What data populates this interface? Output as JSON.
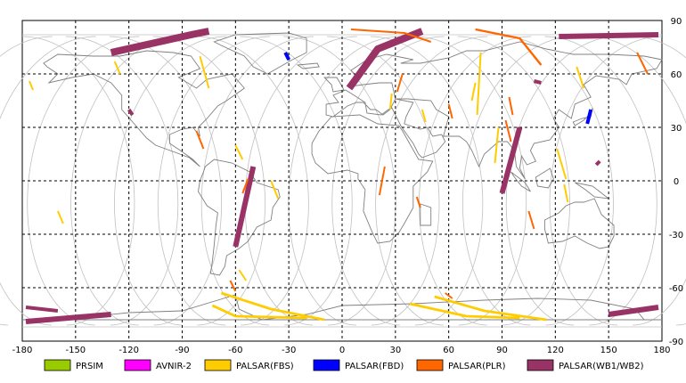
{
  "chart_data": {
    "type": "scatter",
    "title": "",
    "xlabel": "",
    "ylabel": "",
    "xlim": [
      -180,
      180
    ],
    "ylim": [
      -90,
      90
    ],
    "xticks": [
      -180,
      -150,
      -120,
      -90,
      -60,
      -30,
      0,
      30,
      60,
      90,
      120,
      150,
      180
    ],
    "yticks": [
      90,
      60,
      30,
      0,
      -30,
      -60,
      -90
    ],
    "grid": true,
    "legend_position": "bottom",
    "colors": {
      "PRSIM": "#99cc00",
      "AVNIR-2": "#ff00ff",
      "PALSAR(FBS)": "#ffcc00",
      "PALSAR(FBD)": "#0000ff",
      "PALSAR(PLR)": "#ff6600",
      "PALSAR(WB1/WB2)": "#993366",
      "coastline": "#808080",
      "orbit": "#c0c0c0"
    },
    "legend": [
      {
        "name": "PRSIM",
        "color": "#99cc00"
      },
      {
        "name": "AVNIR-2",
        "color": "#ff00ff"
      },
      {
        "name": "PALSAR(FBS)",
        "color": "#ffcc00"
      },
      {
        "name": "PALSAR(FBD)",
        "color": "#0000ff"
      },
      {
        "name": "PALSAR(PLR)",
        "color": "#ff6600"
      },
      {
        "name": "PALSAR(WB1/WB2)",
        "color": "#993366"
      }
    ],
    "series": [
      {
        "name": "PALSAR(WB1/WB2)",
        "segments": [
          {
            "lon": [
              -130,
              -85,
              -75
            ],
            "lat": [
              72,
              82,
              84
            ],
            "width": 4
          },
          {
            "lon": [
              4,
              20,
              45
            ],
            "lat": [
              52,
              74,
              84
            ],
            "width": 4
          },
          {
            "lon": [
              -50,
              -60
            ],
            "lat": [
              8,
              -37
            ],
            "width": 3
          },
          {
            "lon": [
              100,
              90
            ],
            "lat": [
              30,
              -7
            ],
            "width": 3
          },
          {
            "lon": [
              122,
              178
            ],
            "lat": [
              81,
              82
            ],
            "width": 3
          },
          {
            "lon": [
              -178,
              -130
            ],
            "lat": [
              -79,
              -75
            ],
            "width": 3
          },
          {
            "lon": [
              -178,
              -160
            ],
            "lat": [
              -71,
              -73
            ],
            "width": 2
          },
          {
            "lon": [
              150,
              178
            ],
            "lat": [
              -75,
              -71
            ],
            "width": 3
          },
          {
            "lon": [
              -120,
              -118
            ],
            "lat": [
              40,
              37
            ],
            "width": 2
          },
          {
            "lon": [
              108,
              112
            ],
            "lat": [
              56,
              55
            ],
            "width": 2
          },
          {
            "lon": [
              143,
              145
            ],
            "lat": [
              9,
              11
            ],
            "width": 2
          }
        ]
      },
      {
        "name": "PALSAR(FBS)",
        "segments": [
          {
            "lon": [
              -73,
              -60,
              -20
            ],
            "lat": [
              -70,
              -76,
              -77
            ],
            "width": 1.4
          },
          {
            "lon": [
              -68,
              -40,
              -10
            ],
            "lat": [
              -63,
              -72,
              -78
            ],
            "width": 1.4
          },
          {
            "lon": [
              38,
              70,
              100
            ],
            "lat": [
              -69,
              -76,
              -77
            ],
            "width": 1.4
          },
          {
            "lon": [
              52,
              80,
              115
            ],
            "lat": [
              -65,
              -73,
              -78
            ],
            "width": 1.4
          },
          {
            "lon": [
              -128,
              -125
            ],
            "lat": [
              67,
              60
            ],
            "width": 1
          },
          {
            "lon": [
              -80,
              -75
            ],
            "lat": [
              70,
              52
            ],
            "width": 1
          },
          {
            "lon": [
              -60,
              -56
            ],
            "lat": [
              20,
              12
            ],
            "width": 1
          },
          {
            "lon": [
              -40,
              -36
            ],
            "lat": [
              0,
              -10
            ],
            "width": 1
          },
          {
            "lon": [
              -160,
              -157
            ],
            "lat": [
              -17,
              -24
            ],
            "width": 1
          },
          {
            "lon": [
              -176,
              -174
            ],
            "lat": [
              56,
              51
            ],
            "width": 1
          },
          {
            "lon": [
              78,
              76
            ],
            "lat": [
              72,
              37
            ],
            "width": 1
          },
          {
            "lon": [
              75,
              73
            ],
            "lat": [
              55,
              45
            ],
            "width": 1
          },
          {
            "lon": [
              88,
              86
            ],
            "lat": [
              30,
              10
            ],
            "width": 1
          },
          {
            "lon": [
              132,
              136
            ],
            "lat": [
              64,
              52
            ],
            "width": 1
          },
          {
            "lon": [
              121,
              126
            ],
            "lat": [
              18,
              1
            ],
            "width": 1
          },
          {
            "lon": [
              125,
              127
            ],
            "lat": [
              -2,
              -12
            ],
            "width": 1
          },
          {
            "lon": [
              28,
              27
            ],
            "lat": [
              49,
              40
            ],
            "width": 1
          },
          {
            "lon": [
              45,
              47
            ],
            "lat": [
              40,
              33
            ],
            "width": 1
          },
          {
            "lon": [
              -58,
              -54
            ],
            "lat": [
              -50,
              -56
            ],
            "width": 1
          }
        ]
      },
      {
        "name": "PALSAR(PLR)",
        "segments": [
          {
            "lon": [
              5,
              35,
              50
            ],
            "lat": [
              85,
              83,
              78
            ],
            "width": 1
          },
          {
            "lon": [
              75,
              100,
              112
            ],
            "lat": [
              85,
              80,
              65
            ],
            "width": 1.2
          },
          {
            "lon": [
              166,
              172
            ],
            "lat": [
              72,
              60
            ],
            "width": 1
          },
          {
            "lon": [
              60,
              62
            ],
            "lat": [
              43,
              35
            ],
            "width": 1
          },
          {
            "lon": [
              94,
              96
            ],
            "lat": [
              47,
              37
            ],
            "width": 1
          },
          {
            "lon": [
              92,
              95
            ],
            "lat": [
              34,
              22
            ],
            "width": 1
          },
          {
            "lon": [
              34,
              31
            ],
            "lat": [
              60,
              50
            ],
            "width": 1
          },
          {
            "lon": [
              24,
              21
            ],
            "lat": [
              8,
              -8
            ],
            "width": 1
          },
          {
            "lon": [
              42,
              44
            ],
            "lat": [
              -9,
              -15
            ],
            "width": 1
          },
          {
            "lon": [
              -53,
              -56
            ],
            "lat": [
              1,
              -7
            ],
            "width": 1
          },
          {
            "lon": [
              -82,
              -78
            ],
            "lat": [
              28,
              18
            ],
            "width": 1
          },
          {
            "lon": [
              105,
              108
            ],
            "lat": [
              -17,
              -27
            ],
            "width": 1
          },
          {
            "lon": [
              -63,
              -60
            ],
            "lat": [
              -56,
              -62
            ],
            "width": 1
          },
          {
            "lon": [
              58,
              62
            ],
            "lat": [
              -63,
              -66
            ],
            "width": 1
          }
        ]
      },
      {
        "name": "PALSAR(FBD)",
        "segments": [
          {
            "lon": [
              -32,
              -30
            ],
            "lat": [
              72,
              68
            ],
            "width": 2
          },
          {
            "lon": [
              140,
              138
            ],
            "lat": [
              40,
              32
            ],
            "width": 2
          }
        ]
      }
    ]
  }
}
